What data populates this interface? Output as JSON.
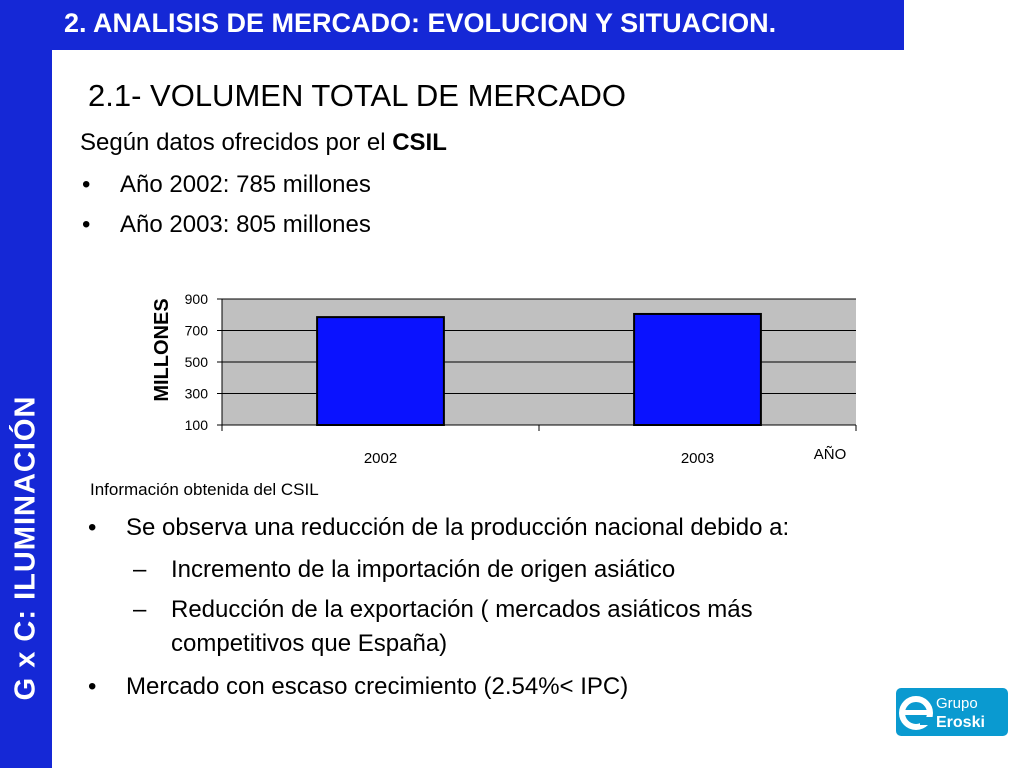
{
  "sidebar": {
    "label": "G x C:   ILUMINACIÓN",
    "color": "#1528d6"
  },
  "header": {
    "title": "2. ANALISIS DE MERCADO: EVOLUCION Y SITUACION."
  },
  "section": {
    "title": "2.1- VOLUMEN TOTAL DE MERCADO"
  },
  "intro": {
    "prefix": "Según datos ofrecidos por el ",
    "highlight": "CSIL"
  },
  "facts": [
    {
      "bullet": "•",
      "text": "Año 2002: 785 millones"
    },
    {
      "bullet": "•",
      "text": "Año 2003: 805 millones"
    }
  ],
  "chart_data": {
    "type": "bar",
    "categories": [
      "2002",
      "2003"
    ],
    "values": [
      785,
      805
    ],
    "ylabel": "MILLONES",
    "xlabel": "AÑO",
    "ylim": [
      100,
      900
    ],
    "yticks": [
      100,
      300,
      500,
      700,
      900
    ],
    "grid": true,
    "bar_color": "#0a12ff",
    "plot_bg": "#c0c0c0"
  },
  "source": {
    "text": "Información obtenida del CSIL"
  },
  "observations": [
    {
      "level": 1,
      "bullet": "•",
      "lines": [
        "Se observa una reducción de la producción nacional debido a:"
      ]
    },
    {
      "level": 2,
      "bullet": "–",
      "lines": [
        "Incremento de la importación de origen asiático"
      ]
    },
    {
      "level": 2,
      "bullet": "–",
      "lines": [
        "Reducción de la exportación ( mercados asiáticos más",
        "competitivos que España)"
      ]
    },
    {
      "level": 1,
      "bullet": "•",
      "lines": [
        "Mercado con escaso crecimiento (2.54%< IPC)"
      ]
    }
  ],
  "logo": {
    "line1": "Grupo",
    "line2": "Eroski",
    "color": "#0a9ad0",
    "icon": "eroski-e-icon"
  }
}
